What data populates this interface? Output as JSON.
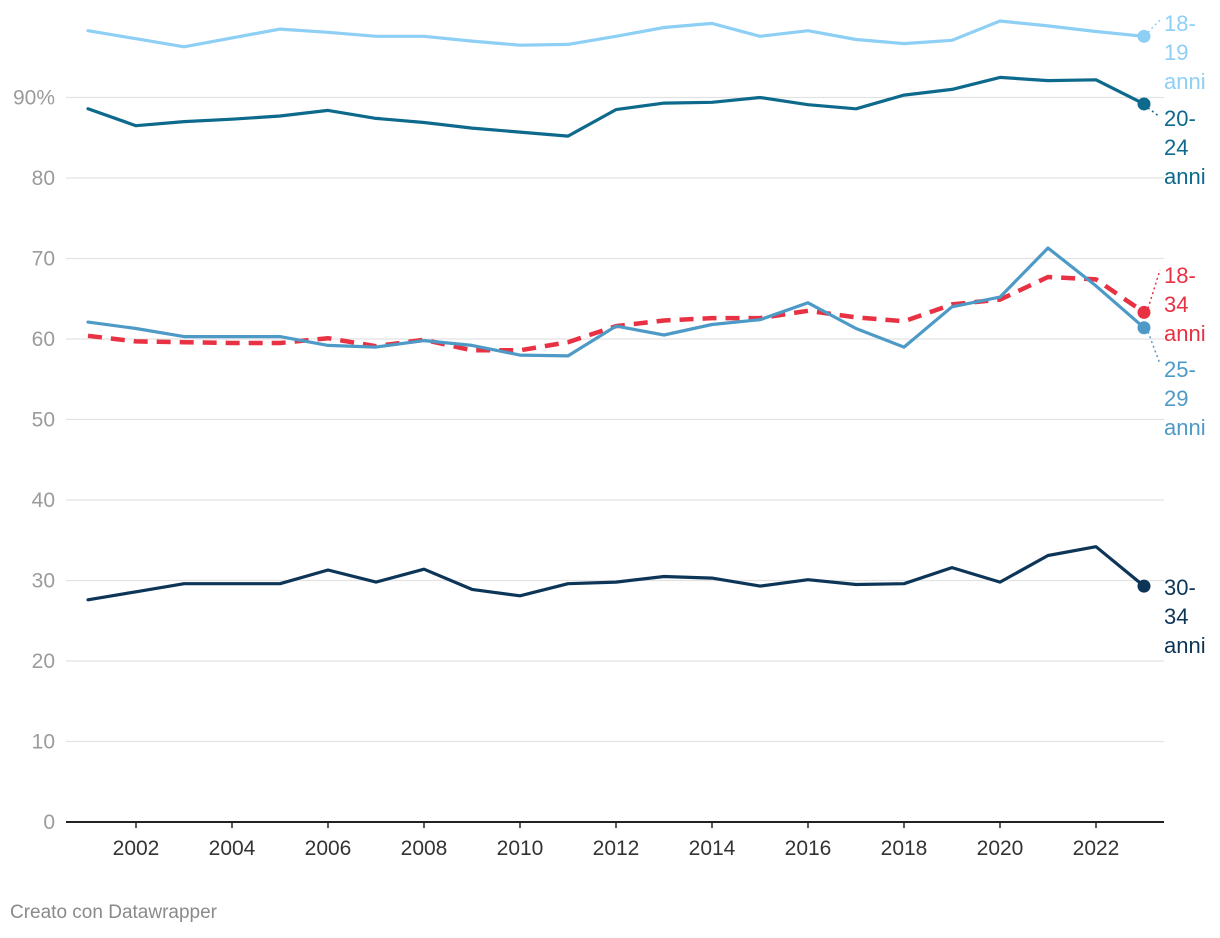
{
  "footer": {
    "credit": "Creato con Datawrapper"
  },
  "chart_data": {
    "type": "line",
    "title": "",
    "xlabel": "",
    "ylabel": "",
    "ylim": [
      0,
      100
    ],
    "y_ticks": [
      0,
      10,
      20,
      30,
      40,
      50,
      60,
      70,
      80,
      90
    ],
    "y_tick_labels": [
      "0",
      "10",
      "20",
      "30",
      "40",
      "50",
      "60",
      "70",
      "80",
      "90%"
    ],
    "x_ticks": [
      2002,
      2004,
      2006,
      2008,
      2010,
      2012,
      2014,
      2016,
      2018,
      2020,
      2022
    ],
    "x_tick_labels": [
      "2002",
      "2004",
      "2006",
      "2008",
      "2010",
      "2012",
      "2014",
      "2016",
      "2018",
      "2020",
      "2022"
    ],
    "xlim": [
      2001,
      2023
    ],
    "grid": true,
    "legend": "inline-right",
    "x": [
      2001,
      2002,
      2003,
      2004,
      2005,
      2006,
      2007,
      2008,
      2009,
      2010,
      2011,
      2012,
      2013,
      2014,
      2015,
      2016,
      2017,
      2018,
      2019,
      2020,
      2021,
      2022,
      2023
    ],
    "series": [
      {
        "name_lines": [
          "18-",
          "19",
          "anni"
        ],
        "color": "#8dcff5",
        "dash": false,
        "values": [
          98.3,
          97.3,
          96.3,
          97.4,
          98.5,
          98.1,
          97.6,
          97.6,
          97.0,
          96.5,
          96.6,
          97.6,
          98.7,
          99.2,
          97.6,
          98.3,
          97.2,
          96.7,
          97.1,
          99.5,
          98.9,
          98.2,
          97.6
        ]
      },
      {
        "name_lines": [
          "20-",
          "24",
          "anni"
        ],
        "color": "#0d6a8c",
        "dash": false,
        "values": [
          88.6,
          86.5,
          87.0,
          87.3,
          87.7,
          88.4,
          87.4,
          86.9,
          86.2,
          85.7,
          85.2,
          88.5,
          89.3,
          89.4,
          90.0,
          89.1,
          88.6,
          90.3,
          91.0,
          92.5,
          92.1,
          92.2,
          89.2
        ]
      },
      {
        "name_lines": [
          "18-",
          "34",
          "anni"
        ],
        "color": "#e83142",
        "dash": true,
        "values": [
          60.4,
          59.7,
          59.6,
          59.5,
          59.5,
          60.1,
          59.1,
          59.9,
          58.6,
          58.6,
          59.6,
          61.6,
          62.3,
          62.6,
          62.6,
          63.5,
          62.7,
          62.2,
          64.3,
          64.9,
          67.7,
          67.4,
          63.3
        ]
      },
      {
        "name_lines": [
          "25-",
          "29",
          "anni"
        ],
        "color": "#4e9ac7",
        "dash": false,
        "values": [
          62.1,
          61.3,
          60.3,
          60.3,
          60.3,
          59.2,
          59.0,
          59.8,
          59.2,
          58.0,
          57.9,
          61.6,
          60.5,
          61.8,
          62.4,
          64.5,
          61.3,
          59.0,
          64.0,
          65.2,
          71.3,
          66.6,
          61.4
        ]
      },
      {
        "name_lines": [
          "30-",
          "34",
          "anni"
        ],
        "color": "#0d3557",
        "dash": false,
        "values": [
          27.6,
          28.6,
          29.6,
          29.6,
          29.6,
          31.3,
          29.8,
          31.4,
          28.9,
          28.1,
          29.6,
          29.8,
          30.5,
          30.3,
          29.3,
          30.1,
          29.5,
          29.6,
          31.6,
          29.8,
          33.1,
          34.2,
          29.3
        ]
      }
    ]
  }
}
